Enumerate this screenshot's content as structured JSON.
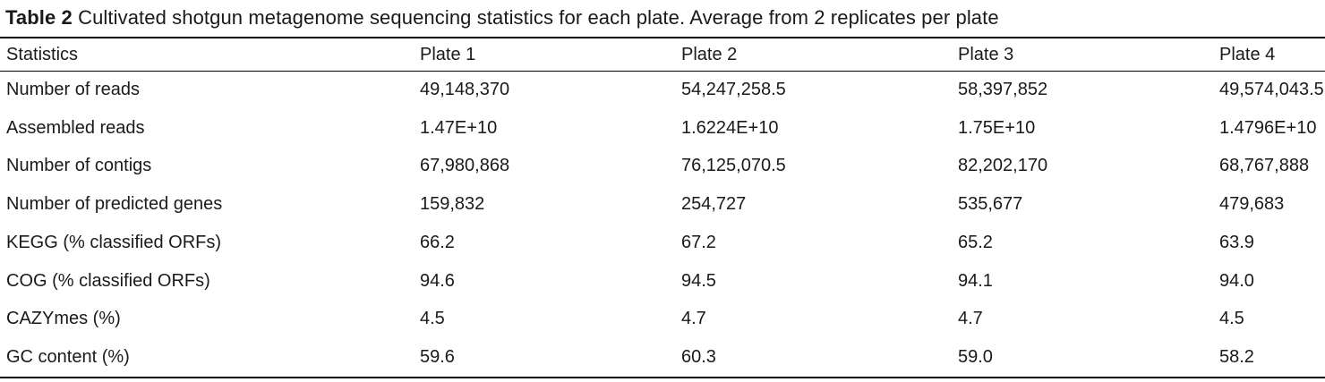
{
  "caption": {
    "label": "Table 2",
    "text": "Cultivated shotgun metagenome sequencing statistics for each plate. Average from 2 replicates per plate"
  },
  "table": {
    "headers": [
      "Statistics",
      "Plate 1",
      "Plate 2",
      "Plate 3",
      "Plate 4"
    ],
    "rows": [
      [
        "Number of reads",
        "49,148,370",
        "54,247,258.5",
        "58,397,852",
        "49,574,043.5"
      ],
      [
        "Assembled reads",
        "1.47E+10",
        "1.6224E+10",
        "1.75E+10",
        "1.4796E+10"
      ],
      [
        "Number of contigs",
        "67,980,868",
        "76,125,070.5",
        "82,202,170",
        "68,767,888"
      ],
      [
        "Number of predicted genes",
        "159,832",
        "254,727",
        "535,677",
        "479,683"
      ],
      [
        "KEGG (% classified ORFs)",
        "66.2",
        "67.2",
        "65.2",
        "63.9"
      ],
      [
        "COG (% classified ORFs)",
        "94.6",
        "94.5",
        "94.1",
        "94.0"
      ],
      [
        "CAZYmes (%)",
        "4.5",
        "4.7",
        "4.7",
        "4.5"
      ],
      [
        "GC content (%)",
        "59.6",
        "60.3",
        "59.0",
        "58.2"
      ]
    ]
  }
}
